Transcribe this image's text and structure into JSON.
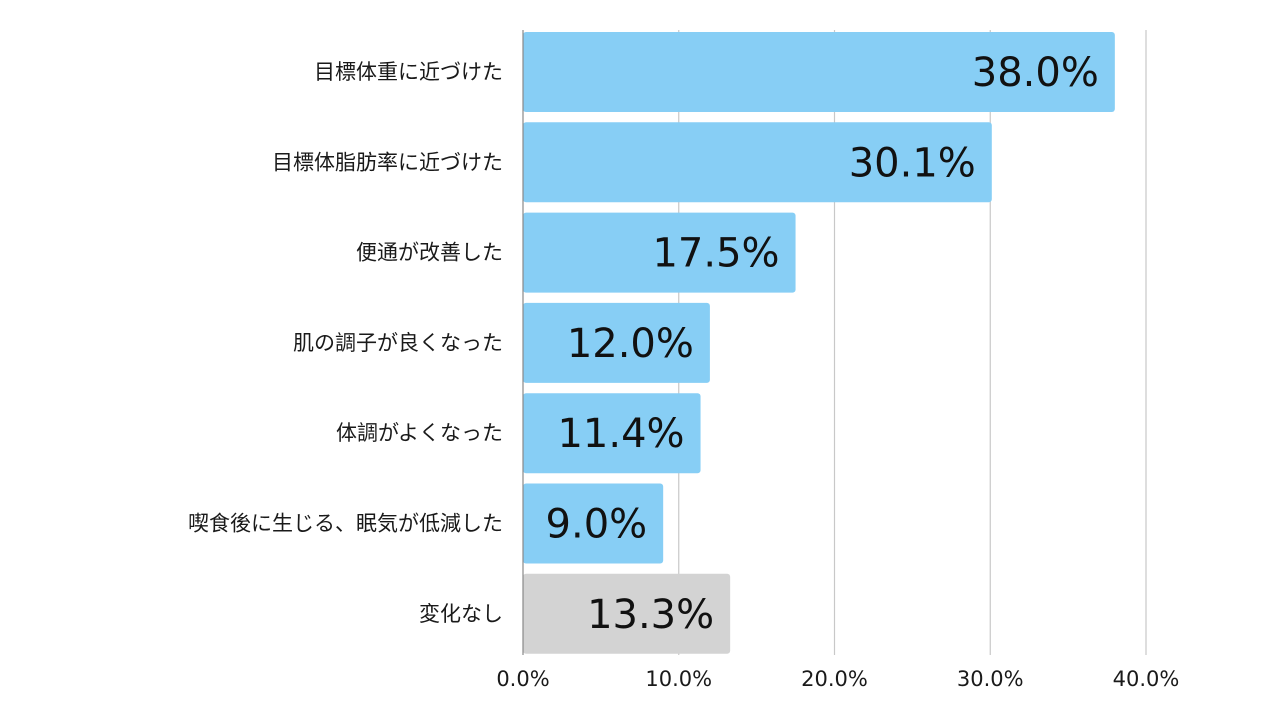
{
  "chart_data": {
    "type": "bar",
    "orientation": "horizontal",
    "categories": [
      "目標体重に近づけた",
      "目標体脂肪率に近づけた",
      "便通が改善した",
      "肌の調子が良くなった",
      "体調がよくなった",
      "喫食後に生じる、眠気が低減した",
      "変化なし"
    ],
    "values": [
      38.0,
      30.1,
      17.5,
      12.0,
      11.4,
      9.0,
      13.3
    ],
    "data_labels": [
      "38.0%",
      "30.1%",
      "17.5%",
      "12.0%",
      "11.4%",
      "9.0%",
      "13.3%"
    ],
    "bar_colors": [
      "#87cef5",
      "#87cef5",
      "#87cef5",
      "#87cef5",
      "#87cef5",
      "#87cef5",
      "#d3d3d3"
    ],
    "xlim": [
      0,
      40
    ],
    "x_ticks": [
      0,
      10,
      20,
      30,
      40
    ],
    "x_tick_labels": [
      "0.0%",
      "10.0%",
      "20.0%",
      "30.0%",
      "40.0%"
    ],
    "grid": true,
    "legend": "none"
  }
}
